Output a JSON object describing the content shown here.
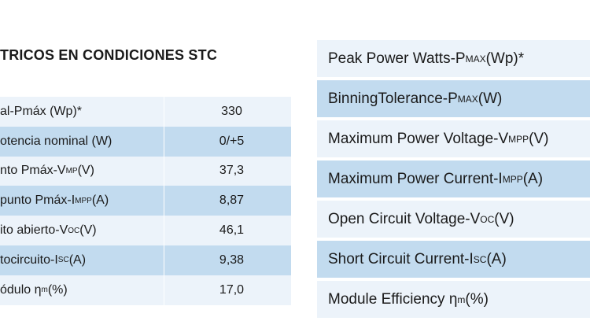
{
  "left": {
    "title": "TRICOS EN CONDICIONES STC",
    "rows": [
      {
        "pre": "al-Pmáx (Wp)*",
        "sub": "",
        "post": "",
        "value": "330"
      },
      {
        "pre": "otencia nominal (W)",
        "sub": "",
        "post": "",
        "value": "0/+5"
      },
      {
        "pre": "nto Pmáx-V",
        "sub": "MP",
        "post": " (V)",
        "value": "37,3"
      },
      {
        "pre": "punto Pmáx-I",
        "sub": "MPP",
        "post": " (A)",
        "value": "8,87"
      },
      {
        "pre": "ito abierto-V",
        "sub": "OC",
        "post": " (V)",
        "value": "46,1"
      },
      {
        "pre": "tocircuito-I",
        "sub": "SC",
        "post": " (A)",
        "value": "9,38"
      },
      {
        "pre": "ódulo η",
        "sub": "m",
        "post": " (%)",
        "value": "17,0"
      }
    ]
  },
  "right": {
    "rows": [
      {
        "pre": "Peak Power Watts-P",
        "sub": "MAX",
        "post": " (Wp)*"
      },
      {
        "pre": "BinningTolerance-P ",
        "sub": "MAX",
        "post": " (W)"
      },
      {
        "pre": "Maximum Power Voltage-V",
        "sub": "MPP",
        "post": " (V)"
      },
      {
        "pre": "Maximum Power Current-I",
        "sub": "MPP",
        "post": " (A)"
      },
      {
        "pre": "Open Circuit Voltage-V",
        "sub": "OC",
        "post": " (V)"
      },
      {
        "pre": "Short Circuit Current-I",
        "sub": "SC",
        "post": " (A)"
      },
      {
        "pre": "Module Efficiency  η",
        "sub": "m",
        "post": "(%)"
      }
    ]
  }
}
